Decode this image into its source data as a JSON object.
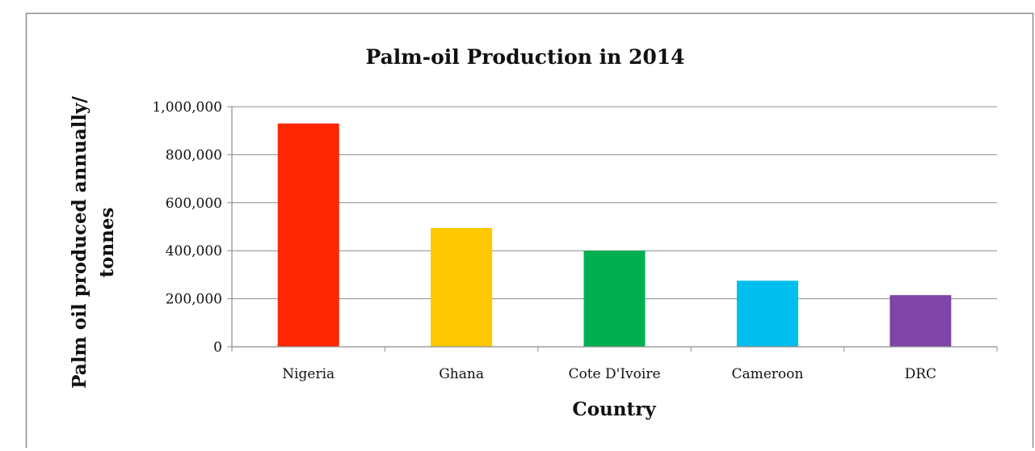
{
  "chart_data": {
    "type": "bar",
    "title": "Palm-oil Production in 2014",
    "xlabel": "Country",
    "ylabel_lines": [
      "Palm oil produced annually/",
      "tonnes"
    ],
    "categories": [
      "Nigeria",
      "Ghana",
      "Cote D'Ivoire",
      "Cameroon",
      "DRC"
    ],
    "values": [
      930000,
      495000,
      400000,
      275000,
      215000
    ],
    "colors": [
      "#ff2600",
      "#ffc800",
      "#00b050",
      "#00bfef",
      "#7f45a8"
    ],
    "ylim": [
      0,
      1000000
    ],
    "yticks": [
      0,
      200000,
      400000,
      600000,
      800000,
      1000000
    ],
    "ytick_labels": [
      "0",
      "200,000",
      "400,000",
      "600,000",
      "800,000",
      "1,000,000"
    ],
    "grid": true,
    "legend": "none"
  }
}
